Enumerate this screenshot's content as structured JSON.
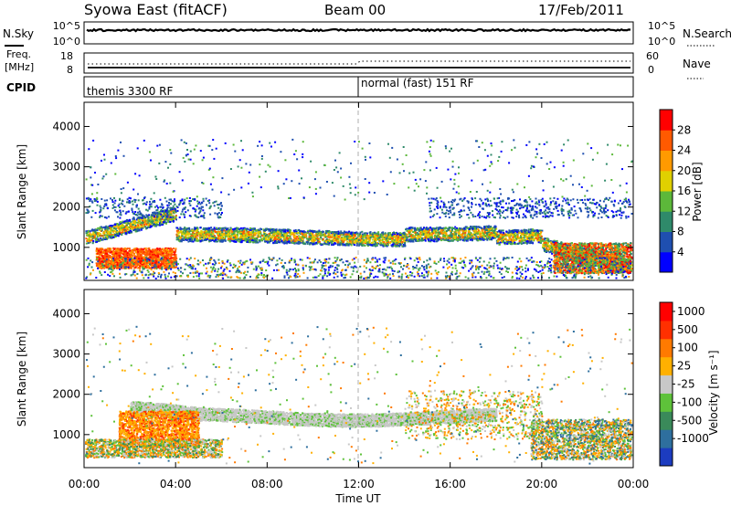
{
  "header": {
    "title": "Syowa East (fitACF)",
    "beam": "Beam 00",
    "date": "17/Feb/2011"
  },
  "nsky_panel": {
    "left_label": "N.Sky",
    "right_label": "N.Search",
    "left_ticks": [
      "10^5",
      "10^0"
    ],
    "right_ticks": [
      "10^5",
      "10^0"
    ]
  },
  "freq_panel": {
    "left_label_1": "Freq.",
    "left_label_2": "[MHz]",
    "right_label": "Nave",
    "left_ticks": [
      "18",
      "8"
    ],
    "right_ticks": [
      "60",
      "0"
    ]
  },
  "cpid_panel": {
    "label": "CPID",
    "modes": [
      {
        "name": "themis 3300 RF",
        "start_hour": 0
      },
      {
        "name": "normal (fast) 151 RF",
        "start_hour": 12
      }
    ]
  },
  "x_axis": {
    "label": "Time UT",
    "ticks": [
      "00:00",
      "04:00",
      "08:00",
      "12:00",
      "16:00",
      "20:00",
      "00:00"
    ]
  },
  "chart_data": [
    {
      "type": "heatmap",
      "name": "power",
      "xlabel": "Time UT",
      "ylabel": "Slant Range [km]",
      "xlim": [
        0,
        24
      ],
      "ylim": [
        180,
        4600
      ],
      "yticks": [
        "1000",
        "2000",
        "3000",
        "4000"
      ],
      "colorbar_label": "Power [dB]",
      "colorbar_ticks": [
        "4",
        "8",
        "12",
        "16",
        "20",
        "24",
        "28"
      ],
      "colorbar_colors": [
        "#0000ff",
        "#1f4fb0",
        "#2f8a6a",
        "#5cb83a",
        "#e0d000",
        "#ff9a00",
        "#ff5a00",
        "#ff0000"
      ]
    },
    {
      "type": "heatmap",
      "name": "velocity",
      "xlabel": "Time UT",
      "ylabel": "Slant Range [km]",
      "xlim": [
        0,
        24
      ],
      "ylim": [
        180,
        4600
      ],
      "yticks": [
        "1000",
        "2000",
        "3000",
        "4000"
      ],
      "colorbar_label": "Velocity  [m s⁻¹]",
      "colorbar_ticks": [
        "1000",
        "500",
        "100",
        "25",
        "-25",
        "-100",
        "-500",
        "-1000"
      ],
      "colorbar_colors": [
        "#1c3cc0",
        "#2e6f9e",
        "#3a8a5a",
        "#5ec23a",
        "#c8c8c8",
        "#ffb000",
        "#ff7a00",
        "#ff3000",
        "#ff0000"
      ]
    }
  ]
}
